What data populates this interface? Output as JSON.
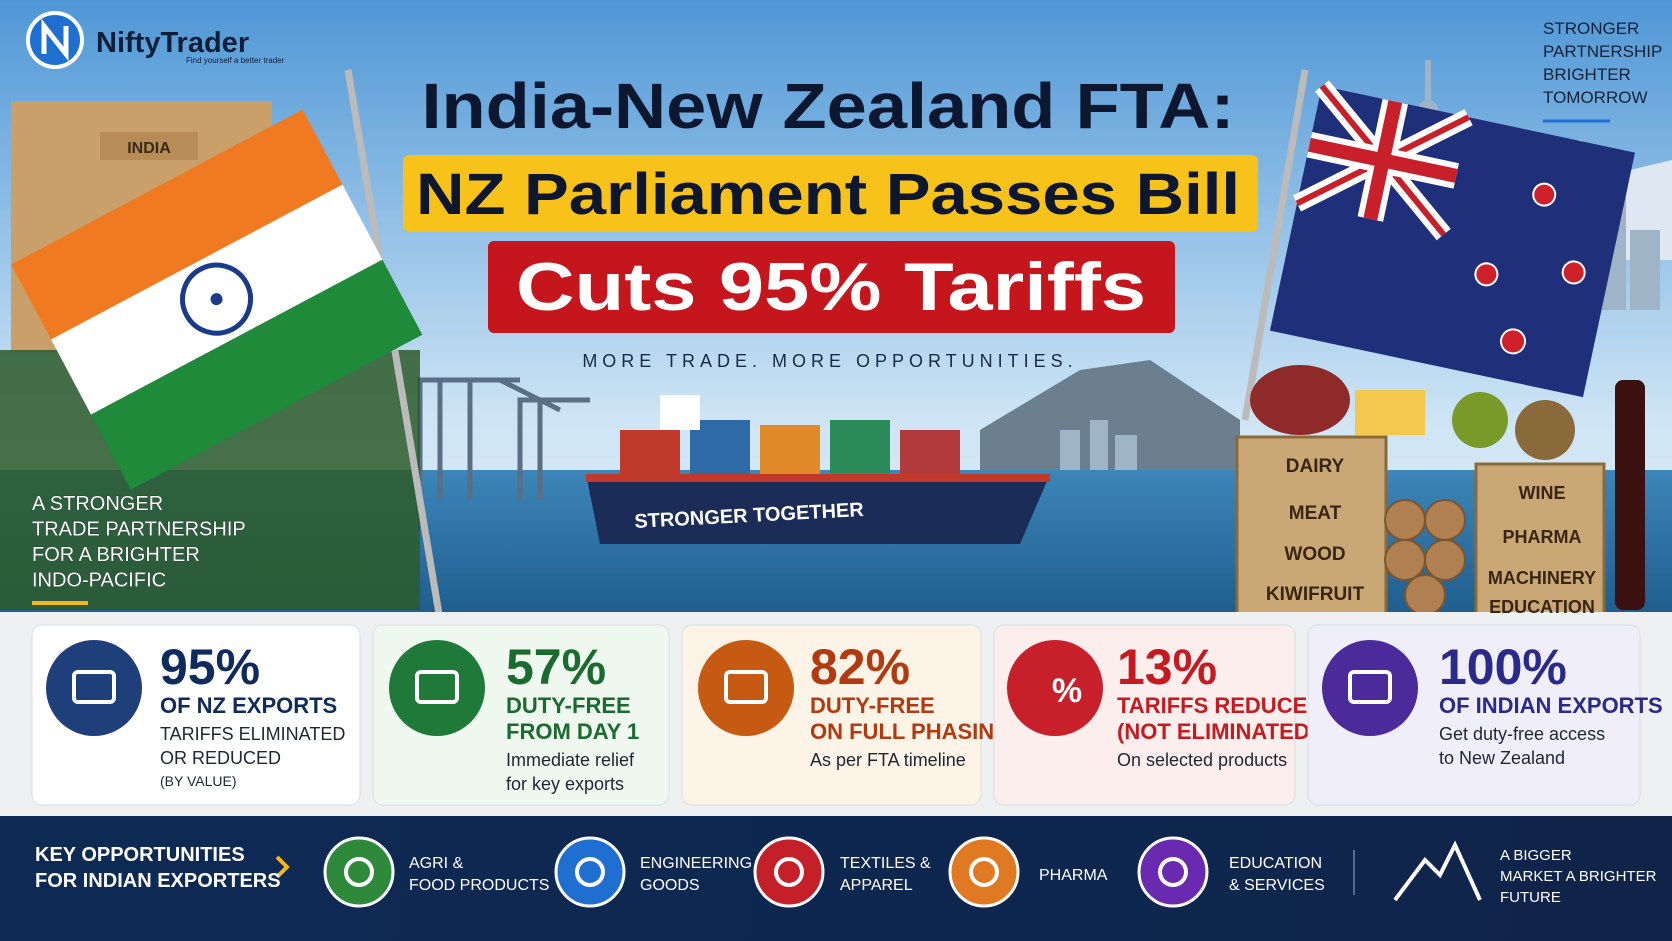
{
  "logo": {
    "brand": "NiftyTrader",
    "tagline": "Find yourself a better trader"
  },
  "corner_tagline": [
    "STRONGER",
    "PARTNERSHIP",
    "BRIGHTER",
    "TOMORROW"
  ],
  "title": {
    "line1": "India-New Zealand FTA:",
    "line2": "NZ Parliament Passes Bill",
    "line3": "Cuts 95% Tariffs"
  },
  "subtitle": "MORE TRADE. MORE OPPORTUNITIES.",
  "side_note": [
    "A STRONGER",
    "TRADE PARTNERSHIP",
    "FOR A BRIGHTER",
    "INDO-PACIFIC"
  ],
  "scene": {
    "gate_label": "INDIA",
    "ship_label": "STRONGER TOGETHER",
    "crate_left": [
      "DAIRY",
      "MEAT",
      "WOOD",
      "KIWIFRUIT"
    ],
    "crate_right": [
      "WINE",
      "PHARMA",
      "MACHINERY",
      "EDUCATION"
    ]
  },
  "stats": [
    {
      "value": "95%",
      "headline": [
        "OF NZ EXPORTS"
      ],
      "detail": [
        "TARIFFS ELIMINATED",
        "OR REDUCED"
      ],
      "note": "(BY VALUE)"
    },
    {
      "value": "57%",
      "headline": [
        "DUTY-FREE",
        "FROM DAY 1"
      ],
      "detail": [
        "Immediate relief",
        "for key exports"
      ]
    },
    {
      "value": "82%",
      "headline": [
        "DUTY-FREE",
        "ON FULL PHASING"
      ],
      "detail": [
        "As per FTA timeline"
      ]
    },
    {
      "value": "13%",
      "headline": [
        "TARIFFS REDUCED",
        "(NOT ELIMINATED)"
      ],
      "detail": [
        "On selected products"
      ],
      "icon_text": "%"
    },
    {
      "value": "100%",
      "headline": [
        "OF INDIAN EXPORTS"
      ],
      "detail": [
        "Get duty-free access",
        "to New Zealand"
      ]
    }
  ],
  "footer": {
    "heading": [
      "KEY OPPORTUNITIES",
      "FOR INDIAN EXPORTERS"
    ],
    "items": [
      [
        "AGRI &",
        "FOOD PRODUCTS"
      ],
      [
        "ENGINEERING",
        "GOODS"
      ],
      [
        "TEXTILES &",
        "APPAREL"
      ],
      [
        "PHARMA"
      ],
      [
        "EDUCATION",
        "& SERVICES"
      ]
    ],
    "closing": [
      "A BIGGER",
      "MARKET A BRIGHTER",
      "FUTURE"
    ]
  }
}
